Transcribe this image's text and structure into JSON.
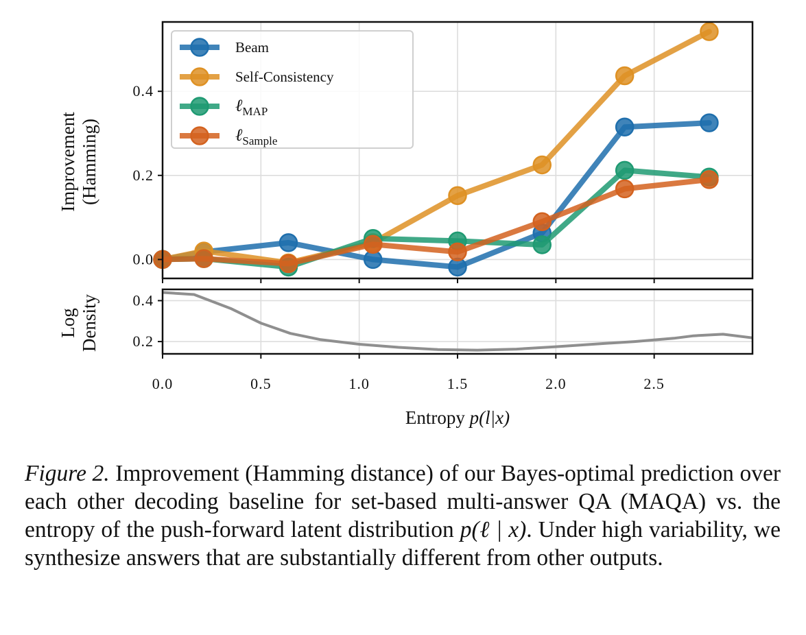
{
  "chart_data": [
    {
      "type": "line",
      "ylabel_lines": [
        "Improvement",
        "(Hamming)"
      ],
      "xlim": [
        0,
        3
      ],
      "ylim": [
        -0.045,
        0.565
      ],
      "yticks": [
        0.0,
        0.2,
        0.4
      ],
      "ytick_labels": [
        "0.0",
        "0.2",
        "0.4"
      ],
      "grid": true,
      "legend_position": "upper-left",
      "series": [
        {
          "name": "Beam",
          "color": "#1f6fad",
          "x": [
            0.0,
            0.21,
            0.64,
            1.07,
            1.5,
            1.93,
            2.35,
            2.78
          ],
          "values": [
            0.0,
            0.018,
            0.04,
            0.0,
            -0.018,
            0.063,
            0.315,
            0.325
          ]
        },
        {
          "name": "Self-Consistency",
          "color": "#de9124",
          "x": [
            0.0,
            0.21,
            0.64,
            1.07,
            1.5,
            1.93,
            2.35,
            2.78
          ],
          "values": [
            0.0,
            0.02,
            -0.008,
            0.04,
            0.152,
            0.225,
            0.437,
            0.542
          ]
        },
        {
          "name": "ℓMAP",
          "name_base": "ℓ",
          "name_sub": "MAP",
          "color": "#1f9a72",
          "x": [
            0.0,
            0.21,
            0.64,
            1.07,
            1.5,
            1.93,
            2.35,
            2.78
          ],
          "values": [
            0.0,
            0.002,
            -0.018,
            0.05,
            0.044,
            0.035,
            0.212,
            0.196
          ]
        },
        {
          "name": "ℓSample",
          "name_base": "ℓ",
          "name_sub": "Sample",
          "color": "#d3621f",
          "x": [
            0.0,
            0.21,
            0.64,
            1.07,
            1.5,
            1.93,
            2.35,
            2.78
          ],
          "values": [
            0.0,
            0.002,
            -0.01,
            0.036,
            0.018,
            0.09,
            0.168,
            0.19
          ]
        }
      ]
    },
    {
      "type": "line",
      "ylabel_lines": [
        "Log",
        "Density"
      ],
      "xlabel_prefix": "Entropy ",
      "xlabel_math": "p(l|x)",
      "xlim": [
        0,
        3
      ],
      "ylim": [
        0.14,
        0.455
      ],
      "yticks": [
        0.2,
        0.4
      ],
      "ytick_labels": [
        "0.2",
        "0.4"
      ],
      "xticks": [
        0.0,
        0.5,
        1.0,
        1.5,
        2.0,
        2.5
      ],
      "xtick_labels": [
        "0.0",
        "0.5",
        "1.0",
        "1.5",
        "2.0",
        "2.5"
      ],
      "grid": true,
      "series": [
        {
          "name": "density",
          "color": "#8f8f8f",
          "x": [
            0.0,
            0.16,
            0.35,
            0.5,
            0.65,
            0.8,
            1.0,
            1.2,
            1.4,
            1.6,
            1.8,
            2.0,
            2.2,
            2.4,
            2.6,
            2.7,
            2.85,
            3.0
          ],
          "values": [
            0.44,
            0.43,
            0.36,
            0.29,
            0.24,
            0.21,
            0.187,
            0.172,
            0.161,
            0.158,
            0.163,
            0.175,
            0.188,
            0.2,
            0.216,
            0.228,
            0.236,
            0.218
          ]
        }
      ]
    }
  ],
  "caption": {
    "label": "Figure 2.",
    "text_1": " Improvement (Hamming distance) of our Bayes-optimal prediction over each other decoding baseline for set-based multi-answer QA (MAQA) vs. the entropy of the push-forward latent distribution ",
    "math": "p(ℓ | x)",
    "text_2": ". Under high variability, we synthesize answers that are substantially different from other outputs."
  }
}
